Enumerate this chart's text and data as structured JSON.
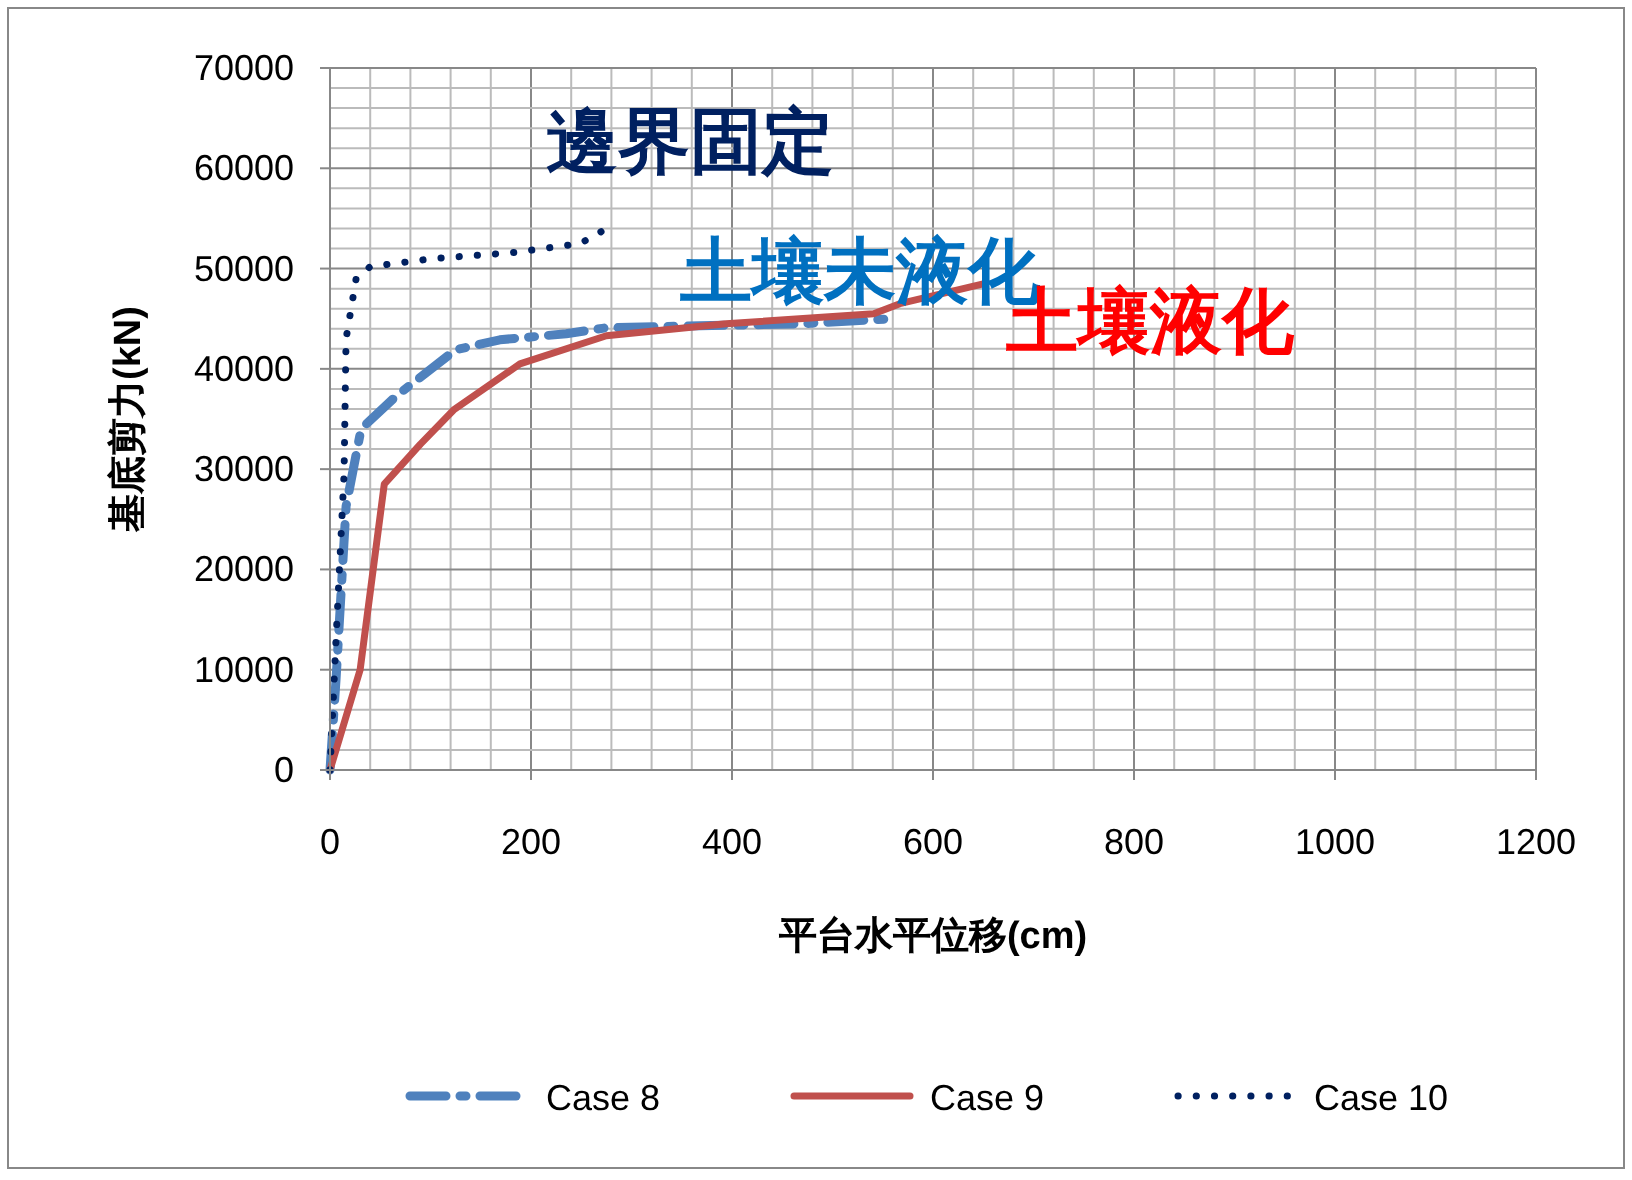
{
  "chart_data": {
    "type": "line",
    "xlabel": "平台水平位移(cm)",
    "ylabel": "基底剪力(kN)",
    "xlim": [
      0,
      1200
    ],
    "xticks": [
      0,
      200,
      400,
      600,
      800,
      1000,
      1200
    ],
    "ylim": [
      0,
      70000
    ],
    "yticks": [
      0,
      10000,
      20000,
      30000,
      40000,
      50000,
      60000,
      70000
    ],
    "grid": true,
    "legend": "bottom",
    "marker": "none",
    "series": [
      {
        "name": "Case 8",
        "color": "#4f81bd",
        "line_style": "dashed",
        "x": [
          0,
          6,
          16,
          30,
          36,
          66,
          125,
          169,
          235,
          275,
          470,
          560
        ],
        "values": [
          0,
          9000,
          26300,
          33500,
          34500,
          37300,
          41900,
          42900,
          43500,
          44100,
          44500,
          45000
        ]
      },
      {
        "name": "Case 9",
        "color": "#c0504d",
        "line_style": "solid",
        "x": [
          0,
          30,
          54,
          90,
          123,
          189,
          275,
          394,
          541,
          567,
          651
        ],
        "values": [
          0,
          10000,
          28500,
          32500,
          35900,
          40500,
          43300,
          44500,
          45500,
          46500,
          48500
        ]
      },
      {
        "name": "Case 10",
        "color": "#002060",
        "line_style": "dotted",
        "x": [
          0,
          6,
          14,
          16,
          26,
          40,
          103,
          183,
          249,
          279
        ],
        "values": [
          0,
          13000,
          29500,
          43000,
          49000,
          50200,
          51000,
          51600,
          52500,
          54200
        ]
      }
    ],
    "annotations": [
      "土壤未液化",
      "土壤液化",
      "邊界固定"
    ]
  }
}
